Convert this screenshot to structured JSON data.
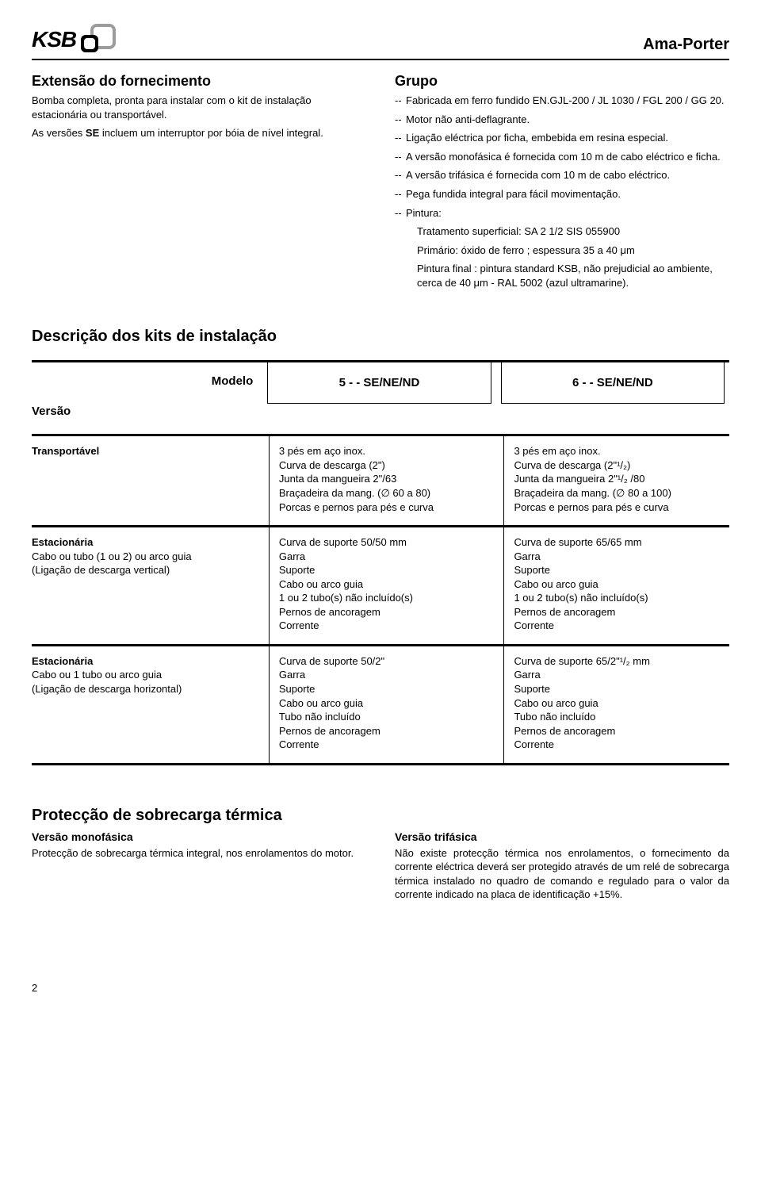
{
  "header": {
    "logo_text": "KSB",
    "product": "Ama-Porter"
  },
  "left_section": {
    "heading": "Extensão do fornecimento",
    "p1": "Bomba completa, pronta para instalar com o kit de instalação estacionária ou transportável.",
    "p2_prefix": "As versões ",
    "p2_strong": "SE",
    "p2_suffix": " incluem um interruptor por bóia de nível integral."
  },
  "right_section": {
    "heading": "Grupo",
    "items": [
      "Fabricada em ferro fundido EN.GJL-200 / JL 1030 / FGL 200 / GG 20.",
      "Motor não anti-deflagrante.",
      "Ligação eléctrica por ficha, embebida em resina especial.",
      "A versão monofásica é fornecida com 10 m de cabo eléctrico e ficha.",
      "A versão trifásica é fornecida com 10 m de cabo eléctrico.",
      "Pega fundida integral para fácil movimentação.",
      "Pintura:"
    ],
    "sub": [
      "Tratamento superficial: SA 2 1/2 SIS 055900",
      "Primário: óxido de ferro ; espessura 35 a 40 μm",
      "Pintura final : pintura standard KSB, não prejudicial ao ambiente, cerca de 40 μm - RAL 5002 (azul ultramarine)."
    ]
  },
  "kits": {
    "heading": "Descrição dos kits de instalação",
    "header_labels": {
      "modelo": "Modelo",
      "versao": "Versão"
    },
    "model_cols": [
      "5 - - SE/NE/ND",
      "6 - - SE/NE/ND"
    ],
    "rows": [
      {
        "label_strong": "Transportável",
        "label_lines": [],
        "col1": [
          "3 pés em aço inox.",
          "Curva de descarga (2\")",
          "Junta da mangueira 2\"/63",
          "Braçadeira da mang. (∅ 60 a 80)",
          "Porcas e pernos para pés e curva"
        ],
        "col2": [
          "3 pés em aço inox.",
          "Curva de descarga (2\"¹/₂)",
          "Junta da mangueira 2\"¹/₂ /80",
          "Braçadeira da mang. (∅ 80 a 100)",
          "Porcas e pernos para pés e curva"
        ]
      },
      {
        "label_strong": "Estacionária",
        "label_lines": [
          "Cabo ou tubo (1 ou 2) ou arco guia",
          "(Ligação de descarga vertical)"
        ],
        "col1": [
          "Curva de suporte 50/50 mm",
          "Garra",
          "Suporte",
          "Cabo ou arco guia",
          "1 ou 2 tubo(s) não incluído(s)",
          "Pernos de ancoragem",
          "Corrente"
        ],
        "col2": [
          "Curva de suporte 65/65 mm",
          "Garra",
          "Suporte",
          "Cabo ou arco guia",
          "1 ou 2 tubo(s) não incluído(s)",
          "Pernos de ancoragem",
          "Corrente"
        ]
      },
      {
        "label_strong": "Estacionária",
        "label_lines": [
          "Cabo ou 1 tubo ou arco guia",
          "(Ligação de descarga horizontal)"
        ],
        "col1": [
          "Curva de suporte 50/2\"",
          "Garra",
          "Suporte",
          "Cabo ou arco guia",
          "Tubo não incluído",
          "Pernos de ancoragem",
          "Corrente"
        ],
        "col2": [
          "Curva de suporte 65/2\"¹/₂ mm",
          "Garra",
          "Suporte",
          "Cabo ou arco guia",
          "Tubo não incluído",
          "Pernos de ancoragem",
          "Corrente"
        ]
      }
    ]
  },
  "protection": {
    "heading": "Protecção de sobrecarga térmica",
    "left": {
      "sub": "Versão monofásica",
      "text": "Protecção de sobrecarga térmica integral, nos enrolamentos do motor."
    },
    "right": {
      "sub": "Versão trifásica",
      "text": "Não existe protecção térmica nos enrolamentos, o fornecimento da corrente eléctrica deverá ser protegido através de um relé de sobrecarga térmica instalado no quadro de comando e regulado para o valor da corrente indicado na placa de identificação +15%."
    }
  },
  "page_number": "2"
}
